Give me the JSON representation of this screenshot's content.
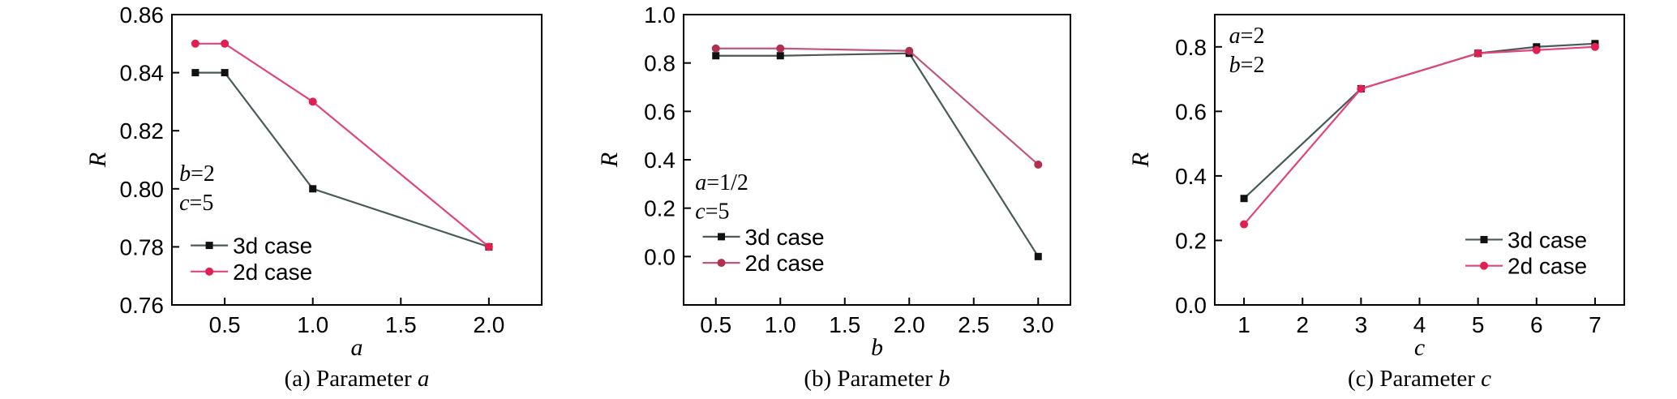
{
  "chart_data": [
    {
      "id": "a",
      "type": "line",
      "caption_prefix": "(a) Parameter ",
      "caption_var": "a",
      "xlabel": "a",
      "ylabel": "R",
      "xlim": [
        0.2,
        2.3
      ],
      "ylim": [
        0.76,
        0.86
      ],
      "xticks": [
        0.5,
        1.0,
        1.5,
        2.0
      ],
      "xtick_labels": [
        "0.5",
        "1.0",
        "1.5",
        "2.0"
      ],
      "yticks": [
        0.76,
        0.78,
        0.8,
        0.82,
        0.84,
        0.86
      ],
      "ytick_labels": [
        "0.76",
        "0.78",
        "0.80",
        "0.82",
        "0.84",
        "0.86"
      ],
      "annotations": [
        {
          "var": "b",
          "value": "=2"
        },
        {
          "var": "c",
          "value": "=5"
        }
      ],
      "legend_position": "bottom-left",
      "series": [
        {
          "name": "3d case",
          "color": "#4a5a5a",
          "marker": "square",
          "x": [
            0.333,
            0.5,
            1.0,
            2.0
          ],
          "y": [
            0.84,
            0.84,
            0.8,
            0.78
          ]
        },
        {
          "name": "2d case",
          "color": "#e0457b",
          "marker": "circle",
          "x": [
            0.333,
            0.5,
            1.0,
            2.0
          ],
          "y": [
            0.85,
            0.85,
            0.83,
            0.78
          ]
        }
      ]
    },
    {
      "id": "b",
      "type": "line",
      "caption_prefix": "(b) Parameter ",
      "caption_var": "b",
      "xlabel": "b",
      "ylabel": "R",
      "xlim": [
        0.25,
        3.25
      ],
      "ylim": [
        -0.2,
        1.0
      ],
      "xticks": [
        0.5,
        1.0,
        1.5,
        2.0,
        2.5,
        3.0
      ],
      "xtick_labels": [
        "0.5",
        "1.0",
        "1.5",
        "2.0",
        "2.5",
        "3.0"
      ],
      "yticks": [
        0.0,
        0.2,
        0.4,
        0.6,
        0.8,
        1.0
      ],
      "ytick_labels": [
        "0.0",
        "0.2",
        "0.4",
        "0.6",
        "0.8",
        "1.0"
      ],
      "annotations": [
        {
          "var": "a",
          "value": "=1/2"
        },
        {
          "var": "c",
          "value": "=5"
        }
      ],
      "legend_position": "bottom-left",
      "series": [
        {
          "name": "3d case",
          "color": "#4a5a5a",
          "marker": "square",
          "x": [
            0.5,
            1.0,
            2.0,
            3.0
          ],
          "y": [
            0.83,
            0.83,
            0.84,
            0.0
          ]
        },
        {
          "name": "2d case",
          "color": "#c2567a",
          "marker": "circle",
          "x": [
            0.5,
            1.0,
            2.0,
            3.0
          ],
          "y": [
            0.86,
            0.86,
            0.85,
            0.38
          ]
        }
      ]
    },
    {
      "id": "c",
      "type": "line",
      "caption_prefix": "(c) Parameter ",
      "caption_var": "c",
      "xlabel": "c",
      "ylabel": "R",
      "xlim": [
        0.5,
        7.5
      ],
      "ylim": [
        0.0,
        0.9
      ],
      "xticks": [
        1,
        2,
        3,
        4,
        5,
        6,
        7
      ],
      "xtick_labels": [
        "1",
        "2",
        "3",
        "4",
        "5",
        "6",
        "7"
      ],
      "yticks": [
        0.0,
        0.2,
        0.4,
        0.6,
        0.8
      ],
      "ytick_labels": [
        "0.0",
        "0.2",
        "0.4",
        "0.6",
        "0.8"
      ],
      "annotations": [
        {
          "var": "a",
          "value": "=2"
        },
        {
          "var": "b",
          "value": "=2"
        }
      ],
      "legend_position": "bottom-right",
      "series": [
        {
          "name": "3d case",
          "color": "#4a5a5a",
          "marker": "square",
          "x": [
            1,
            3,
            5,
            6,
            7
          ],
          "y": [
            0.33,
            0.67,
            0.78,
            0.8,
            0.81
          ]
        },
        {
          "name": "2d case",
          "color": "#e0457b",
          "marker": "circle",
          "x": [
            1,
            3,
            5,
            6,
            7
          ],
          "y": [
            0.25,
            0.67,
            0.78,
            0.79,
            0.8
          ]
        }
      ]
    }
  ]
}
